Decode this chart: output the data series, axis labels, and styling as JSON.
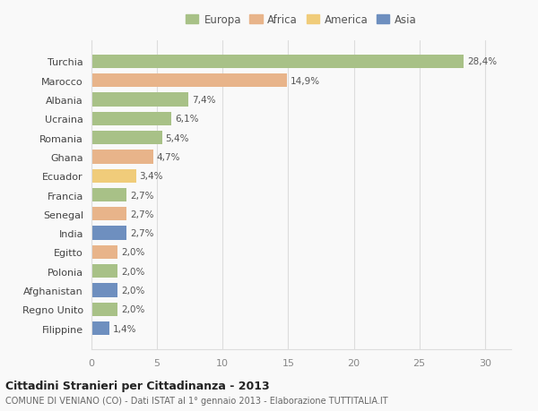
{
  "countries": [
    "Turchia",
    "Marocco",
    "Albania",
    "Ucraina",
    "Romania",
    "Ghana",
    "Ecuador",
    "Francia",
    "Senegal",
    "India",
    "Egitto",
    "Polonia",
    "Afghanistan",
    "Regno Unito",
    "Filippine"
  ],
  "values": [
    28.4,
    14.9,
    7.4,
    6.1,
    5.4,
    4.7,
    3.4,
    2.7,
    2.7,
    2.7,
    2.0,
    2.0,
    2.0,
    2.0,
    1.4
  ],
  "labels": [
    "28,4%",
    "14,9%",
    "7,4%",
    "6,1%",
    "5,4%",
    "4,7%",
    "3,4%",
    "2,7%",
    "2,7%",
    "2,7%",
    "2,0%",
    "2,0%",
    "2,0%",
    "2,0%",
    "1,4%"
  ],
  "colors": [
    "#a8c187",
    "#e8b48a",
    "#a8c187",
    "#a8c187",
    "#a8c187",
    "#e8b48a",
    "#f0cc7a",
    "#a8c187",
    "#e8b48a",
    "#6e8fbf",
    "#e8b48a",
    "#a8c187",
    "#6e8fbf",
    "#a8c187",
    "#6e8fbf"
  ],
  "legend_labels": [
    "Europa",
    "Africa",
    "America",
    "Asia"
  ],
  "legend_colors": [
    "#a8c187",
    "#e8b48a",
    "#f0cc7a",
    "#6e8fbf"
  ],
  "title": "Cittadini Stranieri per Cittadinanza - 2013",
  "subtitle": "COMUNE DI VENIANO (CO) - Dati ISTAT al 1° gennaio 2013 - Elaborazione TUTTITALIA.IT",
  "xlim": [
    0,
    32
  ],
  "xticks": [
    0,
    5,
    10,
    15,
    20,
    25,
    30
  ],
  "bg_color": "#f9f9f9",
  "grid_color": "#dddddd"
}
